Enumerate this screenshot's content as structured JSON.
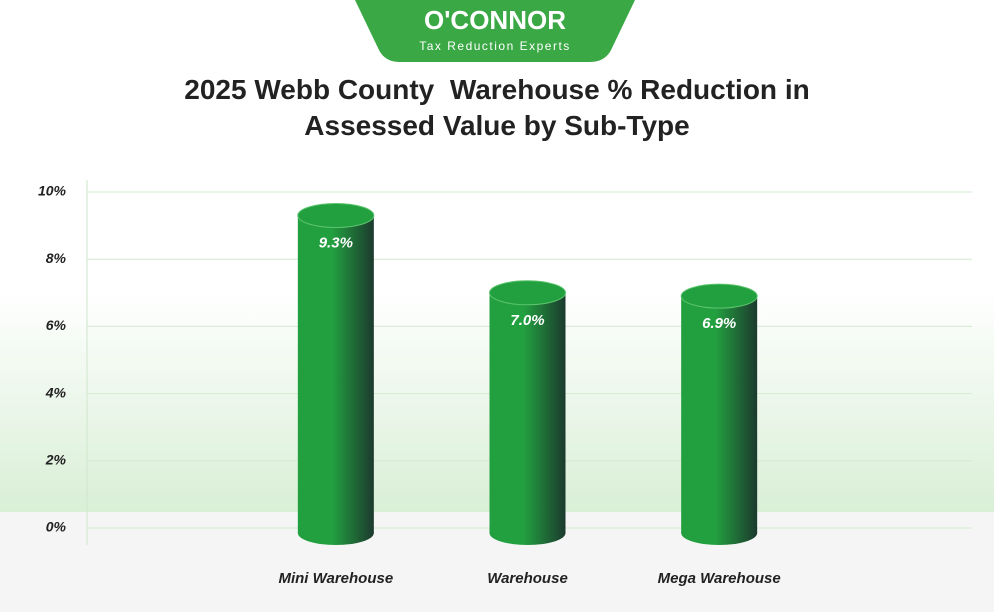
{
  "logo": {
    "name": "O'CONNOR",
    "tagline": "Tax Reduction Experts"
  },
  "chart_data": {
    "type": "bar",
    "title": "2025 Webb County  Warehouse % Reduction in Assessed Value by Sub-Type",
    "categories": [
      "Mini Warehouse",
      "Warehouse",
      "Mega Warehouse"
    ],
    "values": [
      9.3,
      7.0,
      6.9
    ],
    "value_labels": [
      "9.3%",
      "7.0%",
      "6.9%"
    ],
    "color": "#22a03f",
    "ylim": [
      0,
      10
    ],
    "yticks": [
      {
        "value": 0,
        "label": "0%"
      },
      {
        "value": 2,
        "label": "2%"
      },
      {
        "value": 4,
        "label": "4%"
      },
      {
        "value": 6,
        "label": "6%"
      },
      {
        "value": 8,
        "label": "8%"
      },
      {
        "value": 10,
        "label": "10%"
      }
    ],
    "grid": true
  }
}
